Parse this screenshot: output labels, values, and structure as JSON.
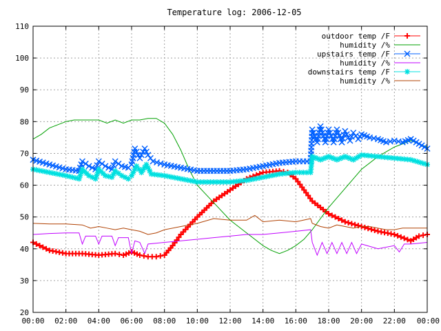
{
  "chart_data": {
    "type": "line",
    "title": "Temperature log: 2006-12-05",
    "xlabel": "",
    "ylabel": "",
    "xlim": [
      0,
      24
    ],
    "ylim": [
      20,
      110
    ],
    "grid": true,
    "legend_position": "top-right",
    "x_tick_labels": [
      "00:00",
      "02:00",
      "04:00",
      "06:00",
      "08:00",
      "10:00",
      "12:00",
      "14:00",
      "16:00",
      "18:00",
      "20:00",
      "22:00",
      "00:00"
    ],
    "y_tick_labels": [
      "20",
      "30",
      "40",
      "50",
      "60",
      "70",
      "80",
      "90",
      "100",
      "110"
    ],
    "series": [
      {
        "name": "outdoor temp /F",
        "color": "#ff0000",
        "marker": "plus",
        "x": [
          0,
          1,
          2,
          3,
          4,
          5,
          5.5,
          6,
          6.5,
          7,
          7.5,
          8,
          8.5,
          9,
          10,
          11,
          12,
          13,
          14,
          15,
          15.5,
          16,
          17,
          18,
          19,
          20,
          21,
          22,
          23,
          23.5,
          24
        ],
        "y": [
          42,
          39.5,
          38.5,
          38.5,
          38,
          38.5,
          38,
          39,
          38,
          37.5,
          37.5,
          38,
          41,
          44.5,
          50,
          55,
          58.5,
          62,
          64,
          64.5,
          64,
          62,
          55,
          51,
          48.5,
          47,
          45.5,
          44.5,
          42.5,
          44,
          44.5
        ]
      },
      {
        "name": "humidity /%",
        "color": "#00a000",
        "marker": "none",
        "x": [
          0,
          0.5,
          1,
          2,
          2.5,
          3,
          4,
          4.5,
          5,
          5.5,
          6,
          6.5,
          7,
          7.5,
          8,
          8.5,
          9,
          9.5,
          10,
          11,
          12,
          13,
          14,
          14.5,
          15,
          15.5,
          16,
          16.5,
          17,
          18,
          19,
          20,
          21,
          22,
          23,
          23.5,
          24
        ],
        "y": [
          74.5,
          76,
          78,
          80,
          80.5,
          80.5,
          80.5,
          79.5,
          80.5,
          79.5,
          80.5,
          80.5,
          81,
          81,
          79.5,
          76,
          71,
          65,
          60,
          54.5,
          49,
          45,
          41,
          39.5,
          38.5,
          39.5,
          41,
          43,
          46,
          53,
          59,
          65,
          69,
          72,
          74,
          73,
          72
        ]
      },
      {
        "name": "upstairs temp /F",
        "color": "#0060ff",
        "marker": "x",
        "x": [
          0,
          1,
          2,
          2.8,
          3,
          3.4,
          3.8,
          4,
          4.4,
          4.8,
          5,
          5.4,
          5.8,
          6,
          6.2,
          6.5,
          6.8,
          7,
          7.3,
          8,
          9,
          10,
          11,
          12,
          13,
          14,
          15,
          16,
          16.9,
          17,
          17.3,
          17.5,
          17.8,
          18,
          18.3,
          18.5,
          18.8,
          19,
          19.3,
          19.5,
          19.8,
          20,
          20.5,
          21,
          21.5,
          22,
          22.5,
          23,
          23.5,
          24
        ],
        "y": [
          68,
          66.5,
          65,
          64.5,
          67.5,
          66,
          65,
          67.5,
          66,
          65,
          67.5,
          66,
          65.5,
          66.5,
          71.5,
          68.5,
          71.5,
          69.5,
          67.5,
          66.5,
          65.5,
          64.5,
          64.5,
          64.5,
          65,
          66,
          67,
          67.5,
          67.5,
          77.5,
          73.5,
          78.5,
          73.5,
          77.5,
          73.5,
          77.5,
          73.5,
          77,
          74,
          76.5,
          74.5,
          76,
          75,
          74.5,
          73.5,
          74,
          73.5,
          74.5,
          73,
          71.5
        ]
      },
      {
        "name": "humidity /%",
        "color": "#c000ff",
        "marker": "none",
        "x": [
          0,
          1,
          2,
          2.8,
          3,
          3.2,
          3.8,
          4,
          4.2,
          4.8,
          5,
          5.2,
          5.8,
          6,
          6.2,
          6.5,
          6.8,
          7,
          8,
          9,
          10,
          11,
          12,
          13,
          14,
          15,
          16,
          16.9,
          17,
          17.3,
          17.6,
          17.9,
          18.2,
          18.5,
          18.8,
          19.1,
          19.4,
          19.7,
          20,
          21,
          22,
          22.3,
          22.6,
          23,
          24
        ],
        "y": [
          44.5,
          44.8,
          45,
          45,
          41.5,
          44,
          44,
          41.5,
          44,
          44,
          41,
          43.5,
          43.5,
          38.5,
          42.5,
          42,
          38.5,
          41.5,
          42,
          42.5,
          43,
          43.5,
          44,
          44.5,
          44.5,
          45,
          45.5,
          46,
          42,
          38,
          42,
          38.5,
          42,
          38.5,
          42,
          38.5,
          42,
          38.5,
          41.5,
          40,
          41,
          39,
          41.5,
          41.5,
          42
        ]
      },
      {
        "name": "downstairs temp /F",
        "color": "#00e0e0",
        "marker": "star",
        "x": [
          0,
          1,
          2,
          2.8,
          3,
          3.4,
          3.8,
          4,
          4.4,
          4.8,
          5,
          5.4,
          5.8,
          6,
          6.3,
          6.6,
          6.9,
          7.2,
          8,
          9,
          10,
          11,
          12,
          13,
          14,
          15,
          16,
          16.9,
          17,
          17.5,
          18,
          18.5,
          19,
          19.5,
          20,
          21,
          22,
          23,
          24
        ],
        "y": [
          65,
          64,
          63,
          62,
          65,
          63,
          62,
          65,
          63,
          62.5,
          64.5,
          63,
          62,
          63,
          66,
          64,
          66.5,
          63.5,
          63,
          62,
          61,
          61,
          61,
          61.5,
          62.5,
          63.5,
          64,
          64,
          69,
          68,
          69,
          68,
          69,
          68,
          69.5,
          69,
          68.5,
          68,
          66.5
        ]
      },
      {
        "name": "humidity /%",
        "color": "#b04000",
        "marker": "none",
        "x": [
          0,
          1,
          2,
          3,
          3.5,
          4,
          4.5,
          5,
          5.5,
          6,
          6.5,
          7,
          7.5,
          8,
          9,
          10,
          11,
          12,
          13,
          13.5,
          14,
          15,
          16,
          16.9,
          17,
          17.5,
          18,
          18.5,
          19,
          19.5,
          20,
          20.5,
          21,
          21.5,
          22,
          22.5,
          23,
          23.5,
          24
        ],
        "y": [
          48,
          47.8,
          47.8,
          47.5,
          46.5,
          47,
          46.5,
          46,
          46.5,
          46,
          45.5,
          44.5,
          45,
          46,
          47,
          48,
          49.5,
          49,
          49,
          50.5,
          48.5,
          49,
          48.5,
          49.5,
          48,
          47,
          46.5,
          47.5,
          47,
          46.5,
          47,
          47,
          46.5,
          46,
          46,
          46.5,
          46.5,
          46.5,
          46.5
        ]
      }
    ]
  }
}
